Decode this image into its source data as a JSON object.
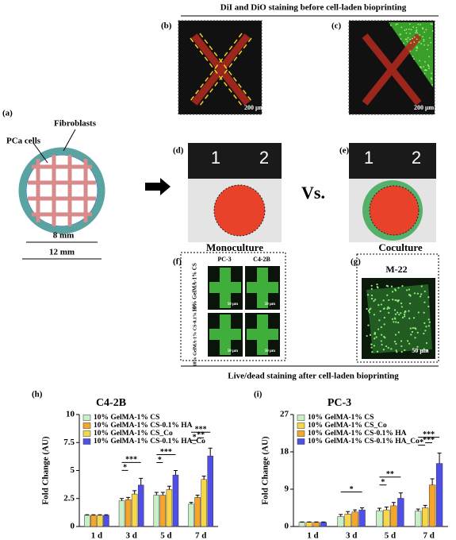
{
  "figure": {
    "top_caption": "DiI and DiO staining before cell-laden bioprinting",
    "bottom_caption": "Live/dead staining after cell-laden bioprinting",
    "panel_labels": {
      "a": "(a)",
      "b": "(b)",
      "c": "(c)",
      "d": "(d)",
      "e": "(e)",
      "f": "(f)",
      "g": "(g)",
      "h": "(h)",
      "i": "(i)"
    },
    "a": {
      "fibroblasts": "Fibroblasts",
      "pca": "PCa cells",
      "inner": "8 mm",
      "outer": "12 mm"
    },
    "b_scale": "200 μm",
    "c_scale": "200 μm",
    "ruler_d": [
      "1",
      "2"
    ],
    "ruler_e": [
      "1",
      "2"
    ],
    "vs": "Vs.",
    "mono": "Monoculture",
    "co": "Coculture",
    "f": {
      "cols": [
        "PC-3",
        "C4-2B"
      ],
      "rows": [
        "10% GelMA-1% CS",
        "10% GelMA-1% CS-0.1% HA"
      ],
      "scales": [
        "50 μm",
        "50 μm",
        "50 μm",
        "50 μm"
      ]
    },
    "g": {
      "title": "M-22",
      "scale": "50 μm"
    }
  },
  "chart_data": [
    {
      "type": "bar",
      "title": "C4-2B",
      "ylabel": "Fold Change (AU)",
      "categories": [
        "1 d",
        "3 d",
        "5 d",
        "7 d"
      ],
      "ylim": [
        0,
        10
      ],
      "yticks": [
        0,
        2.5,
        5,
        7.5,
        10
      ],
      "series": [
        {
          "name": "10% GelMA-1% CS",
          "color": "#c9efc6",
          "values": [
            1,
            2.3,
            2.8,
            2
          ],
          "errors": [
            0.05,
            0.2,
            0.25,
            0.15
          ]
        },
        {
          "name": "10% GelMA-1% CS-0.1% HA",
          "color": "#f5a52a",
          "values": [
            1,
            2.4,
            2.8,
            2.6
          ],
          "errors": [
            0.05,
            0.2,
            0.25,
            0.2
          ]
        },
        {
          "name": "10% GelMA-1% CS_Co",
          "color": "#f7d648",
          "values": [
            1,
            2.9,
            3.3,
            4.2
          ],
          "errors": [
            0.05,
            0.3,
            0.3,
            0.3
          ]
        },
        {
          "name": "10% GelMA-1% CS-0.1% HA_Co",
          "color": "#4f4fe8",
          "values": [
            1,
            3.7,
            4.6,
            6.3
          ],
          "errors": [
            0.05,
            0.6,
            0.4,
            0.7
          ]
        }
      ],
      "significance": [
        [],
        [
          "*",
          "***"
        ],
        [
          "*",
          "***"
        ],
        [
          "*",
          "**",
          "***"
        ]
      ]
    },
    {
      "type": "bar",
      "title": "PC-3",
      "ylabel": "Fold Change (AU)",
      "categories": [
        "1 d",
        "3 d",
        "5 d",
        "7 d"
      ],
      "ylim": [
        0,
        27
      ],
      "yticks": [
        0,
        9,
        18,
        27
      ],
      "series": [
        {
          "name": "10% GelMA-1% CS",
          "color": "#c9efc6",
          "values": [
            1,
            2.4,
            3.8,
            3.7
          ],
          "errors": [
            0.1,
            0.5,
            0.6,
            0.5
          ]
        },
        {
          "name": "10% GelMA-1% CS_Co",
          "color": "#f7d648",
          "values": [
            1,
            3,
            4,
            4.5
          ],
          "errors": [
            0.1,
            0.6,
            0.7,
            0.6
          ]
        },
        {
          "name": "10% GelMA-1% CS-0.1% HA",
          "color": "#f5a52a",
          "values": [
            1,
            3.5,
            5,
            10
          ],
          "errors": [
            0.1,
            0.5,
            0.8,
            1.5
          ]
        },
        {
          "name": "10% GelMA-1% CS-0.1% HA_Co",
          "color": "#4f4fe8",
          "values": [
            1,
            4,
            6.8,
            15.2
          ],
          "errors": [
            0.1,
            0.5,
            1.3,
            2.5
          ]
        }
      ],
      "significance": [
        [],
        [
          "*"
        ],
        [
          "*",
          "**"
        ],
        [
          "*",
          "***",
          "***"
        ]
      ]
    }
  ]
}
